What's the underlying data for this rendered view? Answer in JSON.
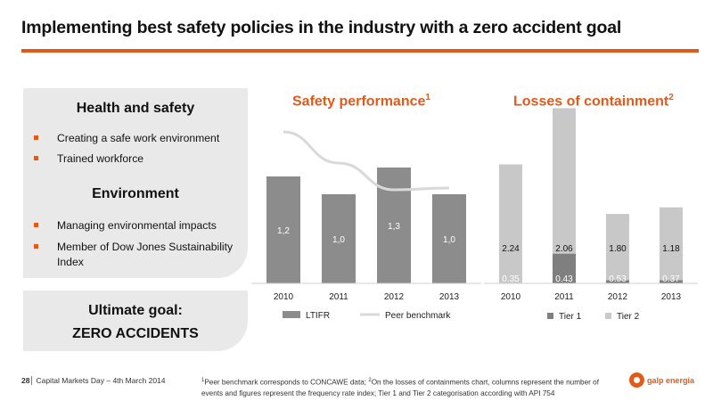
{
  "slide": {
    "title": "Implementing best safety policies in the industry with a zero accident goal",
    "accent": "#e05a1a"
  },
  "left_panel": {
    "health_title": "Health and safety",
    "health_items": [
      "Creating a safe work environment",
      "Trained workforce"
    ],
    "env_title": "Environment",
    "env_items": [
      "Managing environmental impacts",
      "Member of Dow Jones Sustainability Index"
    ],
    "goal_line1": "Ultimate goal:",
    "goal_line2": "ZERO ACCIDENTS"
  },
  "footer": {
    "page": "28",
    "event": "Capital Markets Day – 4th March 2014",
    "footnote_1": "Peer benchmark corresponds to CONCAWE data; ",
    "footnote_2": "On the losses of containments chart, columns represent the number of events and figures represent the frequency rate index; Tier 1 and Tier 2 categorisation according with API 754",
    "brand": "galp energia"
  },
  "chart_data": [
    {
      "type": "bar",
      "title": "Safety performance",
      "title_sup": "1",
      "categories": [
        "2010",
        "2011",
        "2012",
        "2013"
      ],
      "series": [
        {
          "name": "LTIFR",
          "kind": "bar",
          "values": [
            1.2,
            1.0,
            1.3,
            1.0
          ],
          "labels": [
            "1,2",
            "1,0",
            "1,3",
            "1,0"
          ],
          "color": "#8c8c8c"
        },
        {
          "name": "Peer benchmark",
          "kind": "line",
          "values": [
            1.7,
            1.35,
            1.05,
            1.07
          ],
          "color": "#d9d9d9"
        }
      ],
      "ylim": [
        0,
        2.0
      ],
      "legend": "bottom",
      "grid": false
    },
    {
      "type": "bar",
      "stacked": true,
      "title": "Losses of containment",
      "title_sup": "2",
      "categories": [
        "2010",
        "2011",
        "2012",
        "2013"
      ],
      "series": [
        {
          "name": "Tier 1",
          "values": [
            0,
            9,
            1,
            1
          ],
          "labels": [
            "0.35",
            "0.43",
            "0.53",
            "0.37"
          ],
          "color": "#7f7f7f"
        },
        {
          "name": "Tier 2",
          "values": [
            36,
            44,
            20,
            22
          ],
          "labels": [
            "2.24",
            "2.06",
            "1.80",
            "1.18"
          ],
          "color": "#c8c8c8"
        }
      ],
      "ylim": [
        0,
        55
      ],
      "legend": "bottom",
      "grid": false
    }
  ]
}
